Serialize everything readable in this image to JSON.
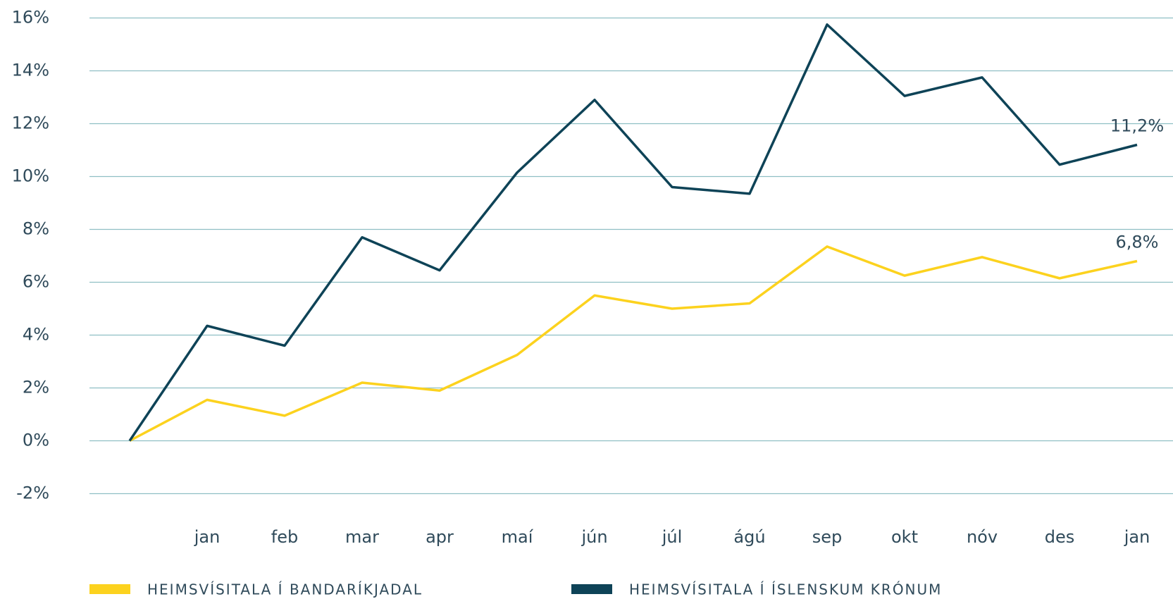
{
  "chart_data": {
    "type": "line",
    "categories": [
      null,
      "jan",
      "feb",
      "mar",
      "apr",
      "maí",
      "jún",
      "júl",
      "ágú",
      "sep",
      "okt",
      "nóv",
      "des",
      "jan"
    ],
    "series": [
      {
        "name": "HEIMSVÍSITALA Í BANDARÍKJADAL",
        "color": "#fcd21e",
        "values": [
          0,
          1.55,
          0.95,
          2.2,
          1.9,
          3.25,
          5.5,
          5.0,
          5.2,
          7.35,
          6.25,
          6.95,
          6.15,
          6.8
        ],
        "value_labels": [
          null,
          null,
          null,
          null,
          null,
          null,
          null,
          null,
          null,
          null,
          null,
          null,
          null,
          "6,8%"
        ]
      },
      {
        "name": "HEIMSVÍSITALA Í ÍSLENSKUM KRÓNUM",
        "color": "#0e4357",
        "values": [
          0,
          4.35,
          3.6,
          7.7,
          6.45,
          10.15,
          12.9,
          9.6,
          9.35,
          15.75,
          13.05,
          13.75,
          10.45,
          11.2
        ],
        "value_labels": [
          null,
          null,
          null,
          null,
          null,
          null,
          null,
          null,
          null,
          null,
          null,
          null,
          null,
          "11,2%"
        ]
      }
    ],
    "ylim": [
      -2,
      16
    ],
    "yticks": [
      {
        "value": -2,
        "label": "-2%"
      },
      {
        "value": 0,
        "label": "0%"
      },
      {
        "value": 2,
        "label": "2%"
      },
      {
        "value": 4,
        "label": "4%"
      },
      {
        "value": 6,
        "label": "6%"
      },
      {
        "value": 8,
        "label": "8%"
      },
      {
        "value": 10,
        "label": "10%"
      },
      {
        "value": 12,
        "label": "12%"
      },
      {
        "value": 14,
        "label": "14%"
      },
      {
        "value": 16,
        "label": "16%"
      }
    ],
    "grid": true,
    "legend": "bottom"
  }
}
